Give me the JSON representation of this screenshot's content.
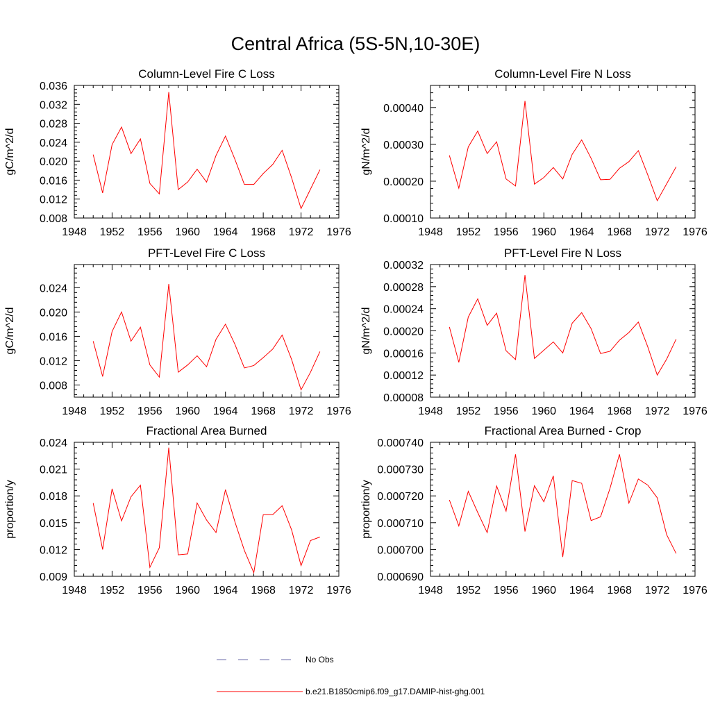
{
  "title": "Central Africa (5S-5N,10-30E)",
  "legend": {
    "entries": [
      {
        "label": "No Obs",
        "color": "#6a6aaa",
        "style": "dashed"
      },
      {
        "label": "b.e21.B1850cmip6.f09_g17.DAMIP-hist-ghg.001",
        "color": "#ff0000",
        "style": "solid"
      }
    ]
  },
  "chart_data": [
    {
      "type": "line",
      "title": "Column-Level Fire C Loss",
      "ylabel": "gC/m^2/d",
      "xlim": [
        1948,
        1976
      ],
      "xticks": [
        "1948",
        "1952",
        "1956",
        "1960",
        "1964",
        "1968",
        "1972",
        "1976"
      ],
      "ylim": [
        0.008,
        0.036
      ],
      "yticks": [
        "0.008",
        "0.012",
        "0.016",
        "0.020",
        "0.024",
        "0.028",
        "0.032",
        "0.036"
      ],
      "x": [
        1950,
        1951,
        1952,
        1953,
        1954,
        1955,
        1956,
        1957,
        1958,
        1959,
        1960,
        1961,
        1962,
        1963,
        1964,
        1965,
        1966,
        1967,
        1968,
        1969,
        1970,
        1971,
        1972,
        1973,
        1974
      ],
      "series": [
        {
          "color": "#ff0000",
          "values": [
            0.0214,
            0.0133,
            0.0235,
            0.0272,
            0.0216,
            0.0247,
            0.0153,
            0.0131,
            0.0346,
            0.014,
            0.0156,
            0.0183,
            0.0156,
            0.0212,
            0.0253,
            0.0204,
            0.0151,
            0.0151,
            0.0174,
            0.0193,
            0.0223,
            0.0165,
            0.01,
            0.0141,
            0.0182
          ]
        }
      ]
    },
    {
      "type": "line",
      "title": "Column-Level Fire N Loss",
      "ylabel": "gN/m^2/d",
      "xlim": [
        1948,
        1976
      ],
      "xticks": [
        "1948",
        "1952",
        "1956",
        "1960",
        "1964",
        "1968",
        "1972",
        "1976"
      ],
      "ylim": [
        0.0001,
        0.00046
      ],
      "yticks": [
        "0.00010",
        "0.00020",
        "0.00030",
        "0.00040"
      ],
      "x": [
        1950,
        1951,
        1952,
        1953,
        1954,
        1955,
        1956,
        1957,
        1958,
        1959,
        1960,
        1961,
        1962,
        1963,
        1964,
        1965,
        1966,
        1967,
        1968,
        1969,
        1970,
        1971,
        1972,
        1973,
        1974
      ],
      "series": [
        {
          "color": "#ff0000",
          "values": [
            0.00027,
            0.000181,
            0.000293,
            0.000336,
            0.000275,
            0.000307,
            0.000206,
            0.000187,
            0.000418,
            0.000192,
            0.00021,
            0.000237,
            0.000206,
            0.000273,
            0.000312,
            0.000262,
            0.000204,
            0.000205,
            0.000235,
            0.000253,
            0.000283,
            0.000217,
            0.000147,
            0.000193,
            0.000239
          ]
        }
      ]
    },
    {
      "type": "line",
      "title": "PFT-Level Fire C Loss",
      "ylabel": "gC/m^2/d",
      "xlim": [
        1948,
        1976
      ],
      "xticks": [
        "1948",
        "1952",
        "1956",
        "1960",
        "1964",
        "1968",
        "1972",
        "1976"
      ],
      "ylim": [
        0.006,
        0.0278
      ],
      "yticks": [
        "0.008",
        "0.012",
        "0.016",
        "0.020",
        "0.024"
      ],
      "x": [
        1950,
        1951,
        1952,
        1953,
        1954,
        1955,
        1956,
        1957,
        1958,
        1959,
        1960,
        1961,
        1962,
        1963,
        1964,
        1965,
        1966,
        1967,
        1968,
        1969,
        1970,
        1971,
        1972,
        1973,
        1974
      ],
      "series": [
        {
          "color": "#ff0000",
          "values": [
            0.0152,
            0.0094,
            0.0168,
            0.02,
            0.0152,
            0.0175,
            0.0113,
            0.0093,
            0.0246,
            0.0101,
            0.0113,
            0.0128,
            0.011,
            0.0155,
            0.018,
            0.0147,
            0.0108,
            0.0112,
            0.0125,
            0.0139,
            0.0162,
            0.0122,
            0.0072,
            0.0101,
            0.0135
          ]
        }
      ]
    },
    {
      "type": "line",
      "title": "PFT-Level Fire N Loss",
      "ylabel": "gN/m^2/d",
      "xlim": [
        1948,
        1976
      ],
      "xticks": [
        "1948",
        "1952",
        "1956",
        "1960",
        "1964",
        "1968",
        "1972",
        "1976"
      ],
      "ylim": [
        8e-05,
        0.00032
      ],
      "yticks": [
        "0.00008",
        "0.00012",
        "0.00016",
        "0.00020",
        "0.00024",
        "0.00028",
        "0.00032"
      ],
      "x": [
        1950,
        1951,
        1952,
        1953,
        1954,
        1955,
        1956,
        1957,
        1958,
        1959,
        1960,
        1961,
        1962,
        1963,
        1964,
        1965,
        1966,
        1967,
        1968,
        1969,
        1970,
        1971,
        1972,
        1973,
        1974
      ],
      "series": [
        {
          "color": "#ff0000",
          "values": [
            0.000207,
            0.000143,
            0.000225,
            0.000258,
            0.00021,
            0.000232,
            0.000164,
            0.000148,
            0.000301,
            0.00015,
            0.000165,
            0.00018,
            0.00016,
            0.000214,
            0.000233,
            0.000204,
            0.000159,
            0.000163,
            0.000183,
            0.000197,
            0.000216,
            0.000171,
            0.00012,
            0.000149,
            0.000185
          ]
        }
      ]
    },
    {
      "type": "line",
      "title": "Fractional Area Burned",
      "ylabel": "proportion/y",
      "xlim": [
        1948,
        1976
      ],
      "xticks": [
        "1948",
        "1952",
        "1956",
        "1960",
        "1964",
        "1968",
        "1972",
        "1976"
      ],
      "ylim": [
        0.009,
        0.024
      ],
      "yticks": [
        "0.009",
        "0.012",
        "0.015",
        "0.018",
        "0.021",
        "0.024"
      ],
      "x": [
        1950,
        1951,
        1952,
        1953,
        1954,
        1955,
        1956,
        1957,
        1958,
        1959,
        1960,
        1961,
        1962,
        1963,
        1964,
        1965,
        1966,
        1967,
        1968,
        1969,
        1970,
        1971,
        1972,
        1973,
        1974
      ],
      "series": [
        {
          "color": "#ff0000",
          "values": [
            0.0172,
            0.012,
            0.0188,
            0.0152,
            0.0179,
            0.0192,
            0.01,
            0.0122,
            0.0234,
            0.0114,
            0.0115,
            0.0172,
            0.0153,
            0.0139,
            0.0187,
            0.0151,
            0.0119,
            0.0094,
            0.0159,
            0.0159,
            0.0169,
            0.0142,
            0.0102,
            0.013,
            0.0134
          ]
        }
      ]
    },
    {
      "type": "line",
      "title": "Fractional Area Burned - Crop",
      "ylabel": "proportion/y",
      "xlim": [
        1948,
        1976
      ],
      "xticks": [
        "1948",
        "1952",
        "1956",
        "1960",
        "1964",
        "1968",
        "1972",
        "1976"
      ],
      "ylim": [
        0.00069,
        0.00074
      ],
      "yticks": [
        "0.000690",
        "0.000700",
        "0.000710",
        "0.000720",
        "0.000730",
        "0.000740"
      ],
      "x": [
        1950,
        1951,
        1952,
        1953,
        1954,
        1955,
        1956,
        1957,
        1958,
        1959,
        1960,
        1961,
        1962,
        1963,
        1964,
        1965,
        1966,
        1967,
        1968,
        1969,
        1970,
        1971,
        1972,
        1973,
        1974
      ],
      "series": [
        {
          "color": "#ff0000",
          "values": [
            0.0007185,
            0.0007088,
            0.0007217,
            0.0007138,
            0.0007063,
            0.0007237,
            0.0007143,
            0.0007355,
            0.0007067,
            0.0007238,
            0.0007178,
            0.0007275,
            0.0006972,
            0.0007257,
            0.0007247,
            0.0007108,
            0.0007122,
            0.0007228,
            0.0007355,
            0.0007173,
            0.0007263,
            0.000724,
            0.0007193,
            0.0007055,
            0.0006985
          ]
        }
      ]
    }
  ]
}
